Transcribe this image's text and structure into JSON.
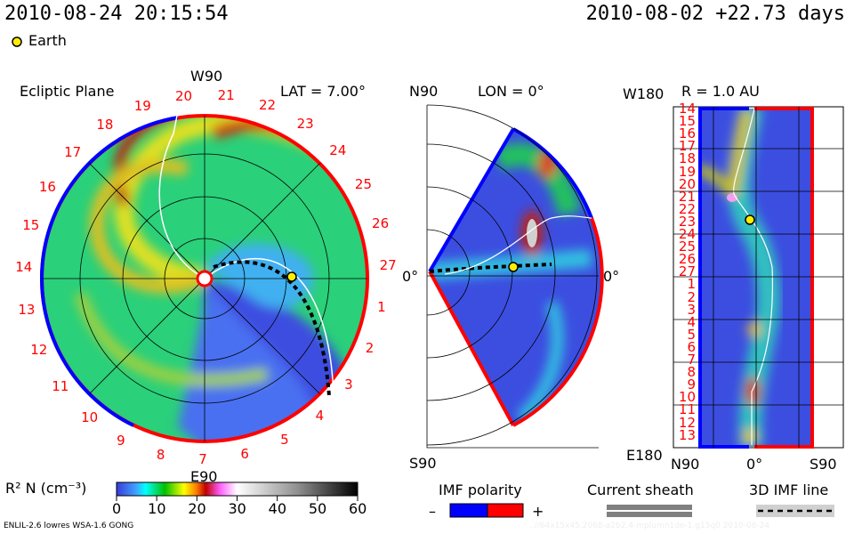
{
  "header": {
    "timestamp": "2010-08-24 20:15:54",
    "reference": "2010-08-02 +22.73 days",
    "legend_earth": "Earth"
  },
  "chart_data": [
    {
      "type": "heatmap",
      "title": "Ecliptic Plane",
      "subtitle": "LAT = 7.00°",
      "labels": {
        "top": "W90",
        "bottom": "E90",
        "right": "0°"
      },
      "ring_labels": [
        "20",
        "21",
        "22",
        "23",
        "24",
        "25",
        "26",
        "27",
        "1",
        "2",
        "3",
        "4",
        "5",
        "6",
        "7",
        "8",
        "9",
        "10",
        "11",
        "12",
        "13",
        "14",
        "15",
        "16",
        "17",
        "18",
        "19"
      ]
    },
    {
      "type": "heatmap",
      "title": "LON = 0°",
      "labels": {
        "top": "N90",
        "bottom": "S90",
        "right": "0°"
      }
    },
    {
      "type": "heatmap",
      "title": "R = 1.0 AU",
      "labels": {
        "top": "W180",
        "bottom": "E180",
        "x_left": "N90",
        "x_mid": "0°",
        "x_right": "S90"
      },
      "y_ticks": [
        "14",
        "15",
        "16",
        "17",
        "18",
        "19",
        "20",
        "21",
        "22",
        "23",
        "24",
        "25",
        "26",
        "27",
        "1",
        "2",
        "3",
        "4",
        "5",
        "6",
        "7",
        "8",
        "9",
        "10",
        "11",
        "12",
        "13"
      ]
    }
  ],
  "colorbar": {
    "label": "R² N (cm⁻³)",
    "ticks": [
      "0",
      "10",
      "20",
      "30",
      "40",
      "50",
      "60"
    ],
    "range": [
      0,
      60
    ]
  },
  "legend": {
    "imf_polarity": "IMF polarity",
    "minus": "–",
    "plus": "+",
    "current_sheath": "Current sheath",
    "imf_line": "3D IMF line"
  },
  "footer": {
    "model": "ENLIL-2.6 lowres WSA-1.6 GONG",
    "run_id": "..//64x15x45.2068-a2b2.4-mplumn1de-1.g15q0   2010-08-24"
  },
  "colors": {
    "earth": "#ffee00",
    "positive": "#ff0000",
    "negative": "#0000ff"
  }
}
